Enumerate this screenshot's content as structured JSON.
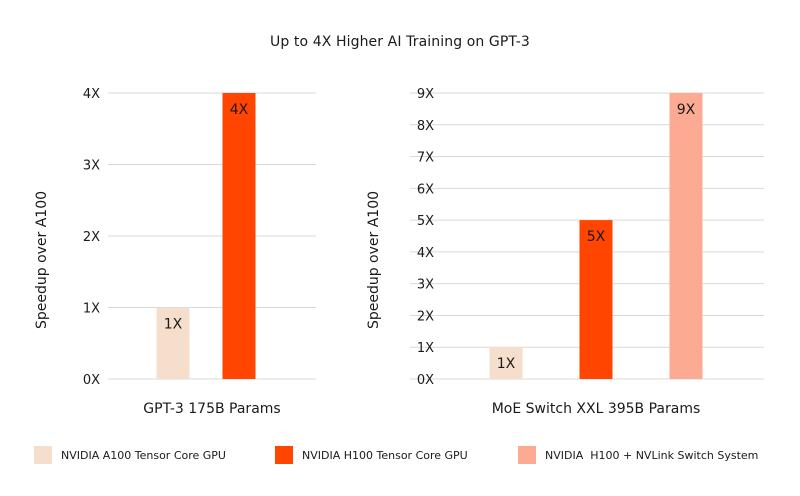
{
  "title": "Up to 4X Higher AI Training on GPT-3",
  "colors": {
    "a100": "#F5DECB",
    "h100": "#FF4500",
    "h100_nvlink": "#FDAA92",
    "grid": "#d9d9d9",
    "text": "#1a1a1a"
  },
  "chart_data": [
    {
      "type": "bar",
      "title": "",
      "xlabel": "GPT-3 175B Params",
      "ylabel": "Speedup over A100",
      "ylim": [
        0,
        4
      ],
      "yticks": [
        "0X",
        "1X",
        "2X",
        "3X",
        "4X"
      ],
      "grid": true,
      "series": [
        {
          "name": "NVIDIA A100 Tensor Core GPU",
          "value": 1,
          "label": "1X",
          "color_key": "a100"
        },
        {
          "name": "NVIDIA H100 Tensor Core GPU",
          "value": 4,
          "label": "4X",
          "color_key": "h100"
        }
      ]
    },
    {
      "type": "bar",
      "title": "",
      "xlabel": "MoE Switch XXL 395B Params",
      "ylabel": "Speedup over A100",
      "ylim": [
        0,
        9
      ],
      "yticks": [
        "0X",
        "1X",
        "2X",
        "3X",
        "4X",
        "5X",
        "6X",
        "7X",
        "8X",
        "9X"
      ],
      "grid": true,
      "series": [
        {
          "name": "NVIDIA A100 Tensor Core GPU",
          "value": 1,
          "label": "1X",
          "color_key": "a100"
        },
        {
          "name": "NVIDIA H100 Tensor Core GPU",
          "value": 5,
          "label": "5X",
          "color_key": "h100"
        },
        {
          "name": "NVIDIA  H100 + NVLink Switch System",
          "value": 9,
          "label": "9X",
          "color_key": "h100_nvlink"
        }
      ]
    }
  ],
  "legend": {
    "placement": "bottom",
    "items": [
      {
        "label": "NVIDIA A100 Tensor Core GPU",
        "color_key": "a100"
      },
      {
        "label": "NVIDIA H100 Tensor Core GPU",
        "color_key": "h100"
      },
      {
        "label": "NVIDIA  H100 + NVLink Switch System",
        "color_key": "h100_nvlink"
      }
    ]
  }
}
